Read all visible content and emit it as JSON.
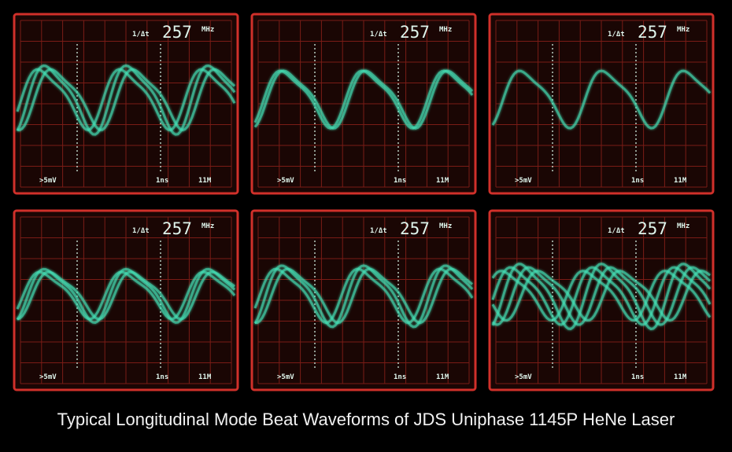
{
  "panels": [
    {
      "freq_symbol": "1/Δt",
      "freq_value": 257,
      "freq_unit": "MHz",
      "volts": ">5mV",
      "time": "1ns",
      "memory": "11M"
    },
    {
      "freq_symbol": "1/Δt",
      "freq_value": 257,
      "freq_unit": "MHz",
      "volts": ">5mV",
      "time": "1ns",
      "memory": "11M"
    },
    {
      "freq_symbol": "1/Δt",
      "freq_value": 257,
      "freq_unit": "MHz",
      "volts": ">5mV",
      "time": "1ns",
      "memory": "11M"
    },
    {
      "freq_symbol": "1/Δt",
      "freq_value": 257,
      "freq_unit": "MHz",
      "volts": ">5mV",
      "time": "1ns",
      "memory": "11M"
    },
    {
      "freq_symbol": "1/Δt",
      "freq_value": 257,
      "freq_unit": "MHz",
      "volts": ">5mV",
      "time": "1ns",
      "memory": "11M"
    },
    {
      "freq_symbol": "1/Δt",
      "freq_value": 257,
      "freq_unit": "MHz",
      "volts": ">5mV",
      "time": "1ns",
      "memory": "11M"
    }
  ],
  "caption": "Typical Longitudinal Mode Beat Waveforms of JDS Uniphase 1145P HeNe Laser"
}
